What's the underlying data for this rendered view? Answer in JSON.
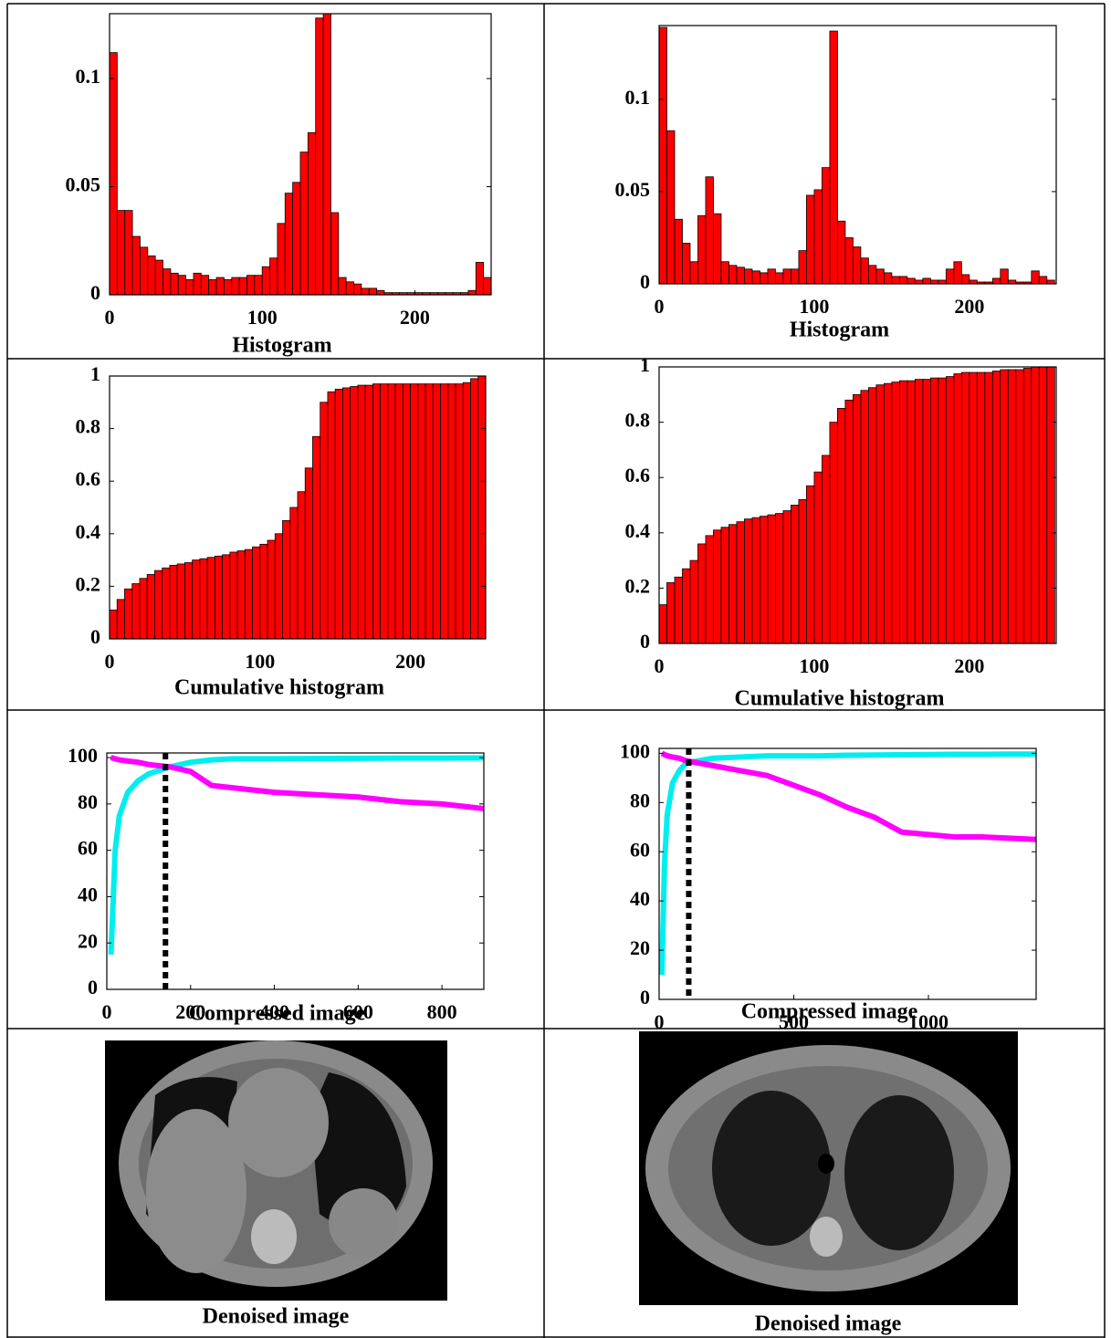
{
  "chart_data": [
    {
      "type": "histogram",
      "xlabel": "Histogram",
      "color": "#ff0000",
      "bins": [
        0,
        5,
        10,
        15,
        20,
        25,
        30,
        35,
        40,
        45,
        50,
        55,
        60,
        65,
        70,
        75,
        80,
        85,
        90,
        95,
        100,
        105,
        110,
        115,
        120,
        125,
        130,
        135,
        140,
        145,
        150,
        155,
        160,
        165,
        170,
        175,
        180,
        185,
        190,
        195,
        200,
        205,
        210,
        215,
        220,
        225,
        230,
        235,
        240,
        245,
        250
      ],
      "values": [
        0.112,
        0.039,
        0.039,
        0.027,
        0.022,
        0.018,
        0.016,
        0.012,
        0.01,
        0.009,
        0.007,
        0.01,
        0.009,
        0.007,
        0.008,
        0.007,
        0.008,
        0.008,
        0.009,
        0.009,
        0.013,
        0.017,
        0.033,
        0.047,
        0.052,
        0.066,
        0.075,
        0.128,
        0.13,
        0.038,
        0.008,
        0.006,
        0.005,
        0.003,
        0.003,
        0.002,
        0.001,
        0.001,
        0.001,
        0.001,
        0.001,
        0.001,
        0.001,
        0.001,
        0.001,
        0.001,
        0.001,
        0.002,
        0.015,
        0.008
      ],
      "xlim": [
        0,
        250
      ],
      "ylim": [
        0,
        0.13
      ],
      "xticks": [
        0,
        100,
        200
      ],
      "yticks": [
        0,
        0.05,
        0.1
      ]
    },
    {
      "type": "histogram",
      "xlabel": "Histogram",
      "color": "#ff0000",
      "bins": [
        0,
        5,
        10,
        15,
        20,
        25,
        30,
        35,
        40,
        45,
        50,
        55,
        60,
        65,
        70,
        75,
        80,
        85,
        90,
        95,
        100,
        105,
        110,
        115,
        120,
        125,
        130,
        135,
        140,
        145,
        150,
        155,
        160,
        165,
        170,
        175,
        180,
        185,
        190,
        195,
        200,
        205,
        210,
        215,
        220,
        225,
        230,
        235,
        240,
        245,
        250,
        255
      ],
      "values": [
        0.139,
        0.083,
        0.035,
        0.022,
        0.012,
        0.037,
        0.058,
        0.038,
        0.012,
        0.01,
        0.009,
        0.008,
        0.007,
        0.006,
        0.008,
        0.006,
        0.008,
        0.008,
        0.018,
        0.048,
        0.051,
        0.063,
        0.137,
        0.034,
        0.025,
        0.02,
        0.014,
        0.01,
        0.008,
        0.006,
        0.004,
        0.004,
        0.003,
        0.002,
        0.003,
        0.002,
        0.002,
        0.008,
        0.012,
        0.005,
        0.002,
        0.001,
        0.001,
        0.003,
        0.008,
        0.002,
        0.001,
        0.001,
        0.007,
        0.004,
        0.002
      ],
      "xlim": [
        0,
        256
      ],
      "ylim": [
        0,
        0.14
      ],
      "xticks": [
        0,
        100,
        200
      ],
      "yticks": [
        0,
        0.05,
        0.1
      ]
    },
    {
      "type": "histogram",
      "xlabel": "Cumulative histogram",
      "color": "#ff0000",
      "bins": [
        0,
        5,
        10,
        15,
        20,
        25,
        30,
        35,
        40,
        45,
        50,
        55,
        60,
        65,
        70,
        75,
        80,
        85,
        90,
        95,
        100,
        105,
        110,
        115,
        120,
        125,
        130,
        135,
        140,
        145,
        150,
        155,
        160,
        165,
        170,
        175,
        180,
        185,
        190,
        195,
        200,
        205,
        210,
        215,
        220,
        225,
        230,
        235,
        240,
        245,
        250
      ],
      "values": [
        0.11,
        0.15,
        0.19,
        0.21,
        0.23,
        0.245,
        0.26,
        0.27,
        0.28,
        0.285,
        0.29,
        0.3,
        0.305,
        0.31,
        0.315,
        0.32,
        0.33,
        0.335,
        0.34,
        0.35,
        0.36,
        0.375,
        0.4,
        0.45,
        0.5,
        0.56,
        0.65,
        0.77,
        0.9,
        0.94,
        0.95,
        0.955,
        0.96,
        0.965,
        0.965,
        0.97,
        0.97,
        0.97,
        0.97,
        0.97,
        0.97,
        0.97,
        0.97,
        0.97,
        0.97,
        0.97,
        0.97,
        0.975,
        0.99,
        1
      ],
      "xlim": [
        0,
        250
      ],
      "ylim": [
        0,
        1
      ],
      "xticks": [
        0,
        100,
        200
      ],
      "yticks": [
        0,
        0.2,
        0.4,
        0.6,
        0.8,
        1
      ]
    },
    {
      "type": "histogram",
      "xlabel": "Cumulative histogram",
      "color": "#ff0000",
      "bins": [
        0,
        5,
        10,
        15,
        20,
        25,
        30,
        35,
        40,
        45,
        50,
        55,
        60,
        65,
        70,
        75,
        80,
        85,
        90,
        95,
        100,
        105,
        110,
        115,
        120,
        125,
        130,
        135,
        140,
        145,
        150,
        155,
        160,
        165,
        170,
        175,
        180,
        185,
        190,
        195,
        200,
        205,
        210,
        215,
        220,
        225,
        230,
        235,
        240,
        245,
        250,
        255
      ],
      "values": [
        0.14,
        0.22,
        0.24,
        0.27,
        0.3,
        0.36,
        0.39,
        0.41,
        0.42,
        0.43,
        0.44,
        0.45,
        0.455,
        0.46,
        0.465,
        0.47,
        0.48,
        0.5,
        0.52,
        0.57,
        0.62,
        0.68,
        0.8,
        0.85,
        0.88,
        0.9,
        0.915,
        0.925,
        0.935,
        0.94,
        0.945,
        0.95,
        0.95,
        0.955,
        0.955,
        0.96,
        0.96,
        0.965,
        0.975,
        0.98,
        0.98,
        0.98,
        0.98,
        0.985,
        0.99,
        0.99,
        0.99,
        0.995,
        1,
        1,
        1
      ],
      "xlim": [
        0,
        256
      ],
      "ylim": [
        0,
        1
      ],
      "xticks": [
        0,
        100,
        200
      ],
      "yticks": [
        0,
        0.2,
        0.4,
        0.6,
        0.8,
        1
      ]
    },
    {
      "type": "line",
      "xlabel": "Compressed image",
      "vline": 140,
      "x": [
        10,
        20,
        30,
        50,
        75,
        100,
        150,
        200,
        250,
        300,
        400,
        500,
        600,
        700,
        800,
        900
      ],
      "series": [
        {
          "color": "#00eeee",
          "values": [
            15,
            60,
            75,
            85,
            90,
            93,
            96,
            98,
            99,
            99.5,
            99.5,
            99.6,
            99.7,
            99.8,
            99.8,
            99.9
          ]
        },
        {
          "color": "#ff00ff",
          "values": [
            100,
            99.5,
            99,
            98.5,
            98,
            97,
            96,
            94,
            88,
            87,
            85,
            84,
            83,
            81,
            80,
            78
          ]
        }
      ],
      "xlim": [
        0,
        900
      ],
      "ylim": [
        0,
        102
      ],
      "xticks": [
        0,
        200,
        400,
        600,
        800
      ],
      "yticks": [
        0,
        20,
        40,
        60,
        80,
        100
      ]
    },
    {
      "type": "line",
      "xlabel": "Compressed image",
      "vline": 110,
      "x": [
        10,
        20,
        30,
        50,
        75,
        100,
        150,
        200,
        300,
        400,
        500,
        600,
        700,
        800,
        900,
        1000,
        1100,
        1200,
        1300,
        1400
      ],
      "series": [
        {
          "color": "#00eeee",
          "values": [
            10,
            55,
            75,
            88,
            93,
            96,
            97,
            98,
            98.5,
            99,
            99,
            99,
            99.2,
            99.3,
            99.4,
            99.5,
            99.6,
            99.6,
            99.7,
            99.7
          ]
        },
        {
          "color": "#ff00ff",
          "values": [
            100,
            99.5,
            99,
            98.5,
            98,
            97,
            96,
            95,
            93,
            91,
            87,
            83,
            78,
            74,
            68,
            67,
            66,
            66,
            65.5,
            65
          ]
        }
      ],
      "xlim": [
        0,
        1400
      ],
      "ylim": [
        0,
        102
      ],
      "xticks": [
        0,
        500,
        1000
      ],
      "yticks": [
        0,
        20,
        40,
        60,
        80,
        100
      ]
    }
  ],
  "images": [
    {
      "caption": "Denoised image"
    },
    {
      "caption": "Denoised image"
    }
  ]
}
